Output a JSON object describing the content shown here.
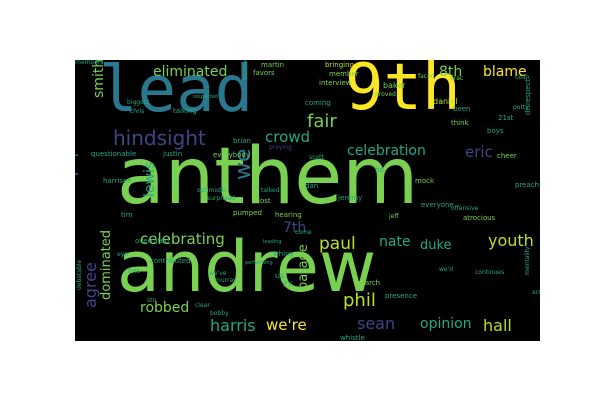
{
  "palette": {
    "background": "#000000",
    "yellow": "#fde725",
    "green": "#7ad151",
    "teal": "#22a884",
    "blue": "#2a788e",
    "indigo": "#414487",
    "purple": "#440154",
    "lime": "#bddf26"
  },
  "words": [
    {
      "text": "anthem",
      "size": 78,
      "color": "green"
    },
    {
      "text": "andrew",
      "size": 70,
      "color": "green"
    },
    {
      "text": "9th",
      "size": 64,
      "color": "yellow"
    },
    {
      "text": "lead",
      "size": 64,
      "color": "blue"
    },
    {
      "text": "hindsight",
      "size": 20,
      "color": "indigo"
    },
    {
      "text": "eliminated",
      "size": 14,
      "color": "green"
    },
    {
      "text": "celebrating",
      "size": 15,
      "color": "green"
    },
    {
      "text": "celebration",
      "size": 14,
      "color": "teal"
    },
    {
      "text": "unpopular",
      "size": 15,
      "color": "blue"
    },
    {
      "text": "agree",
      "size": 16,
      "color": "indigo"
    },
    {
      "text": "dominated",
      "size": 13,
      "color": "green"
    },
    {
      "text": "robbed",
      "size": 14,
      "color": "green"
    },
    {
      "text": "harris",
      "size": 16,
      "color": "teal"
    },
    {
      "text": "we're",
      "size": 15,
      "color": "yellow"
    },
    {
      "text": "sean",
      "size": 16,
      "color": "indigo"
    },
    {
      "text": "opinion",
      "size": 14,
      "color": "teal"
    },
    {
      "text": "hall",
      "size": 16,
      "color": "lime"
    },
    {
      "text": "phil",
      "size": 18,
      "color": "lime"
    },
    {
      "text": "youth",
      "size": 16,
      "color": "lime"
    },
    {
      "text": "paul",
      "size": 17,
      "color": "lime"
    },
    {
      "text": "nate",
      "size": 14,
      "color": "teal"
    },
    {
      "text": "duke",
      "size": 13,
      "color": "teal"
    },
    {
      "text": "parade",
      "size": 13,
      "color": "green"
    },
    {
      "text": "lewis",
      "size": 14,
      "color": "teal"
    },
    {
      "text": "crowd",
      "size": 15,
      "color": "teal"
    },
    {
      "text": "fair",
      "size": 18,
      "color": "green"
    },
    {
      "text": "7th",
      "size": 14,
      "color": "indigo"
    },
    {
      "text": "smith",
      "size": 14,
      "color": "green"
    },
    {
      "text": "blame",
      "size": 14,
      "color": "yellow"
    },
    {
      "text": "8th",
      "size": 14,
      "color": "green"
    },
    {
      "text": "eric",
      "size": 15,
      "color": "indigo"
    },
    {
      "text": "we",
      "size": 22,
      "color": "blue"
    },
    {
      "text": "daniel",
      "size": 8,
      "color": "lime"
    },
    {
      "text": "baker",
      "size": 8,
      "color": "green"
    },
    {
      "text": "martin",
      "size": 7,
      "color": "green"
    },
    {
      "text": "favors",
      "size": 7,
      "color": "green"
    },
    {
      "text": "bringing",
      "size": 7,
      "color": "lime"
    },
    {
      "text": "interview",
      "size": 7,
      "color": "green"
    },
    {
      "text": "member",
      "size": 7,
      "color": "green"
    },
    {
      "text": "coming",
      "size": 7,
      "color": "teal"
    },
    {
      "text": "talking",
      "size": 7,
      "color": "teal"
    },
    {
      "text": "brian",
      "size": 7,
      "color": "teal"
    },
    {
      "text": "questionable",
      "size": 7,
      "color": "teal"
    },
    {
      "text": "justin",
      "size": 7,
      "color": "teal"
    },
    {
      "text": "everybody",
      "size": 7,
      "color": "green"
    },
    {
      "text": "harrisen",
      "size": 7,
      "color": "teal"
    },
    {
      "text": "tim",
      "size": 7,
      "color": "teal"
    },
    {
      "text": "luis",
      "size": 7,
      "color": "teal"
    },
    {
      "text": "contributed",
      "size": 7,
      "color": "teal"
    },
    {
      "text": "optimistic",
      "size": 6,
      "color": "teal"
    },
    {
      "text": "surprised",
      "size": 6,
      "color": "teal"
    },
    {
      "text": "lost",
      "size": 7,
      "color": "green"
    },
    {
      "text": "pumped",
      "size": 7,
      "color": "green"
    },
    {
      "text": "hearing",
      "size": 7,
      "color": "green"
    },
    {
      "text": "whiny",
      "size": 7,
      "color": "teal"
    },
    {
      "text": "mock",
      "size": 7,
      "color": "green"
    },
    {
      "text": "everyone",
      "size": 7,
      "color": "teal"
    },
    {
      "text": "atrocious",
      "size": 7,
      "color": "green"
    },
    {
      "text": "preach",
      "size": 7,
      "color": "teal"
    },
    {
      "text": "cheer",
      "size": 7,
      "color": "green"
    },
    {
      "text": "jeremy",
      "size": 7,
      "color": "teal"
    },
    {
      "text": "march",
      "size": 7,
      "color": "green"
    },
    {
      "text": "presence",
      "size": 7,
      "color": "teal"
    },
    {
      "text": "whistle",
      "size": 7,
      "color": "teal"
    },
    {
      "text": "overrated",
      "size": 7,
      "color": "teal"
    },
    {
      "text": "think",
      "size": 7,
      "color": "green"
    },
    {
      "text": "boys",
      "size": 7,
      "color": "teal"
    },
    {
      "text": "been",
      "size": 7,
      "color": "teal"
    },
    {
      "text": "disrespect",
      "size": 7,
      "color": "teal"
    },
    {
      "text": "21st",
      "size": 7,
      "color": "teal"
    },
    {
      "text": "jeff",
      "size": 6,
      "color": "green"
    },
    {
      "text": "dan",
      "size": 7,
      "color": "teal"
    },
    {
      "text": "talked",
      "size": 6,
      "color": "teal"
    },
    {
      "text": "bandwagon",
      "size": 6,
      "color": "teal"
    },
    {
      "text": "come",
      "size": 6,
      "color": "teal"
    },
    {
      "text": "continues",
      "size": 6,
      "color": "teal"
    },
    {
      "text": "offensive",
      "size": 6,
      "color": "teal"
    },
    {
      "text": "mentality",
      "size": 6,
      "color": "teal"
    },
    {
      "text": "acts",
      "size": 6,
      "color": "teal"
    },
    {
      "text": "debatable",
      "size": 6,
      "color": "teal"
    },
    {
      "text": "biggest",
      "size": 6,
      "color": "teal"
    },
    {
      "text": "bobby",
      "size": 6,
      "color": "teal"
    },
    {
      "text": "we've",
      "size": 6,
      "color": "teal"
    },
    {
      "text": "murray",
      "size": 6,
      "color": "teal"
    },
    {
      "text": "clear",
      "size": 6,
      "color": "teal"
    },
    {
      "text": "chris",
      "size": 6,
      "color": "teal"
    },
    {
      "text": "proved",
      "size": 6,
      "color": "green"
    },
    {
      "text": "cean",
      "size": 6,
      "color": "teal"
    },
    {
      "text": "potty",
      "size": 6,
      "color": "teal"
    },
    {
      "text": "facad",
      "size": 6,
      "color": "green"
    },
    {
      "text": "brac",
      "size": 6,
      "color": "green"
    },
    {
      "text": "praying",
      "size": 6,
      "color": "indigo"
    },
    {
      "text": "scott",
      "size": 6,
      "color": "teal"
    },
    {
      "text": "leading",
      "size": 5,
      "color": "teal"
    },
    {
      "text": "us",
      "size": 8,
      "color": "teal"
    },
    {
      "text": "jry",
      "size": 7,
      "color": "teal"
    },
    {
      "text": "we'd",
      "size": 6,
      "color": "teal"
    },
    {
      "text": "bo",
      "size": 7,
      "color": "teal"
    },
    {
      "text": "stn",
      "size": 6,
      "color": "teal"
    },
    {
      "text": "performing",
      "size": 5,
      "color": "teal"
    },
    {
      "text": "eye",
      "size": 6,
      "color": "teal"
    },
    {
      "text": "members",
      "size": 6,
      "color": "teal"
    },
    {
      "text": "respected",
      "size": 5,
      "color": "teal"
    }
  ]
}
